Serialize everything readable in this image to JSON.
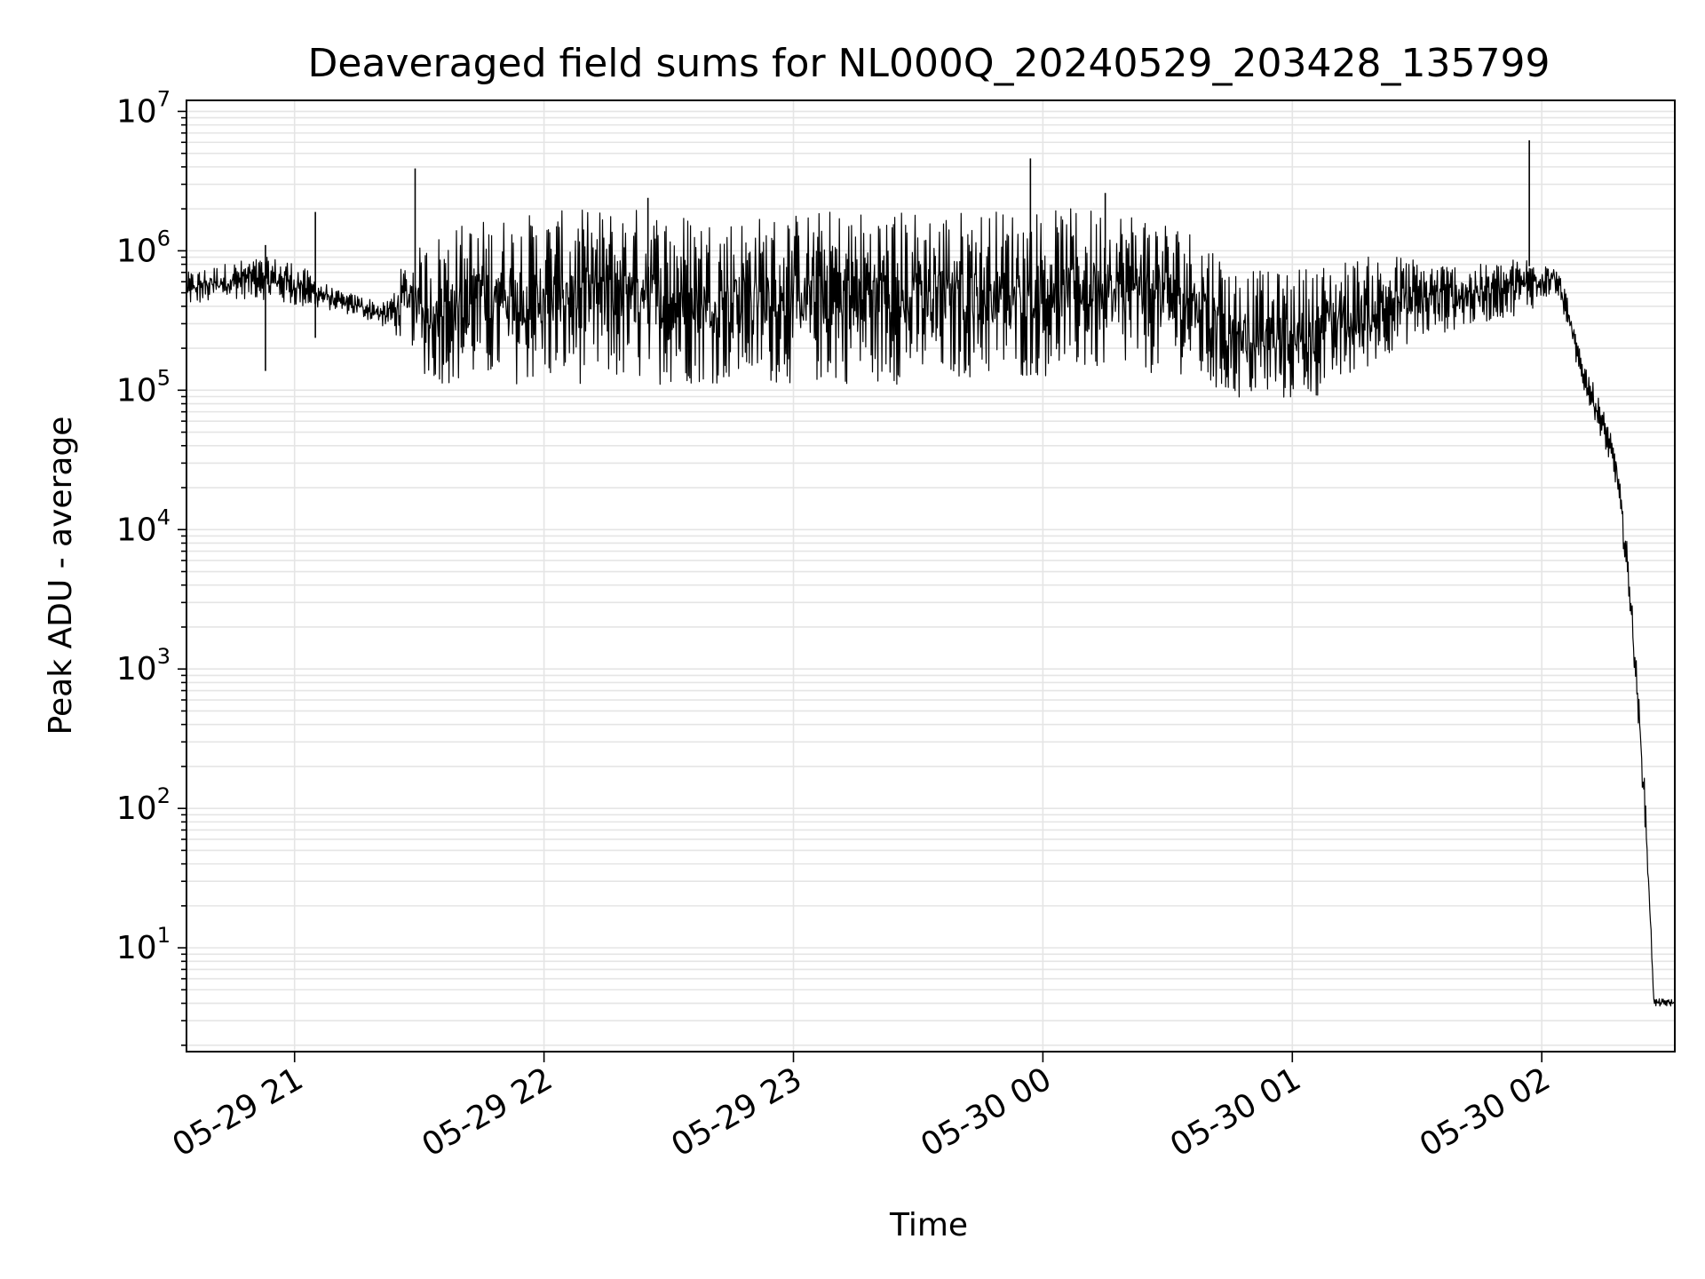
{
  "chart_data": {
    "type": "line",
    "title": "Deaveraged field sums for NL000Q_20240529_203428_135799",
    "xlabel": "Time",
    "ylabel": "Peak ADU - average",
    "xlim": [
      "2024-05-29 20:34",
      "2024-05-30 02:32"
    ],
    "ylim": [
      1.8,
      12000000
    ],
    "yscale": "log",
    "grid": true,
    "line_color": "#000000",
    "grid_color": "#e5e5e5",
    "x_ticks": [
      {
        "label": "05-29 21",
        "t": "2024-05-29 21:00"
      },
      {
        "label": "05-29 22",
        "t": "2024-05-29 22:00"
      },
      {
        "label": "05-29 23",
        "t": "2024-05-29 23:00"
      },
      {
        "label": "05-30 00",
        "t": "2024-05-30 00:00"
      },
      {
        "label": "05-30 01",
        "t": "2024-05-30 01:00"
      },
      {
        "label": "05-30 02",
        "t": "2024-05-30 02:00"
      }
    ],
    "y_ticks": [
      {
        "base": "10",
        "exp": "1",
        "value": 10
      },
      {
        "base": "10",
        "exp": "2",
        "value": 100
      },
      {
        "base": "10",
        "exp": "3",
        "value": 1000
      },
      {
        "base": "10",
        "exp": "4",
        "value": 10000
      },
      {
        "base": "10",
        "exp": "5",
        "value": 100000
      },
      {
        "base": "10",
        "exp": "6",
        "value": 1000000
      },
      {
        "base": "10",
        "exp": "7",
        "value": 10000000
      }
    ],
    "series": [
      {
        "x": [
          "2024-05-29 20:34",
          "2024-05-29 20:40",
          "2024-05-29 20:46",
          "2024-05-29 20:52",
          "2024-05-29 20:58",
          "2024-05-29 21:04",
          "2024-05-29 21:10",
          "2024-05-29 21:16",
          "2024-05-29 21:22",
          "2024-05-29 21:26",
          "2024-05-29 21:29",
          "2024-05-29 21:32",
          "2024-05-29 21:35",
          "2024-05-29 21:40",
          "2024-05-29 21:50",
          "2024-05-29 22:00",
          "2024-05-29 22:10",
          "2024-05-29 22:20",
          "2024-05-29 22:30",
          "2024-05-29 22:40",
          "2024-05-29 22:50",
          "2024-05-29 23:00",
          "2024-05-29 23:10",
          "2024-05-29 23:20",
          "2024-05-29 23:30",
          "2024-05-29 23:40",
          "2024-05-29 23:50",
          "2024-05-29 23:58",
          "2024-05-30 00:05",
          "2024-05-30 00:15",
          "2024-05-30 00:25",
          "2024-05-30 00:35",
          "2024-05-30 00:40",
          "2024-05-30 00:45",
          "2024-05-30 00:55",
          "2024-05-30 01:05",
          "2024-05-30 01:15",
          "2024-05-30 01:25",
          "2024-05-30 01:35",
          "2024-05-30 01:45",
          "2024-05-30 01:55",
          "2024-05-30 01:59",
          "2024-05-30 02:03",
          "2024-05-30 02:06",
          "2024-05-30 02:09",
          "2024-05-30 02:12",
          "2024-05-30 02:15",
          "2024-05-30 02:18",
          "2024-05-30 02:21",
          "2024-05-30 02:23",
          "2024-05-30 02:25",
          "2024-05-30 02:27",
          "2024-05-30 02:28",
          "2024-05-30 02:29",
          "2024-05-30 02:32"
        ],
        "lo": [
          400000,
          420000,
          450000,
          450000,
          400000,
          380000,
          370000,
          330000,
          280000,
          220000,
          200000,
          110000,
          110000,
          110000,
          110000,
          110000,
          110000,
          110000,
          110000,
          110000,
          110000,
          110000,
          110000,
          110000,
          110000,
          120000,
          120000,
          120000,
          130000,
          130000,
          130000,
          130000,
          90000,
          85000,
          80000,
          85000,
          120000,
          200000,
          250000,
          300000,
          350000,
          400000,
          500000,
          300000,
          120000,
          70000,
          40000,
          20000,
          3000,
          500,
          60,
          3.8,
          3.8,
          3.8,
          3.8
        ],
        "hi": [
          700000,
          780000,
          850000,
          900000,
          900000,
          700000,
          520000,
          480000,
          420000,
          800000,
          1000000,
          1200000,
          1400000,
          1600000,
          1800000,
          1900000,
          2000000,
          2100000,
          2000000,
          1800000,
          1800000,
          1900000,
          2000000,
          2000000,
          2000000,
          2000000,
          2000000,
          2000000,
          2000000,
          2100000,
          2000000,
          1500000,
          1300000,
          800000,
          700000,
          800000,
          900000,
          950000,
          850000,
          800000,
          900000,
          950000,
          900000,
          500000,
          200000,
          120000,
          70000,
          35000,
          6000,
          900,
          120,
          4.3,
          4.3,
          4.3,
          4.3
        ],
        "spikes": [
          {
            "t": "2024-05-29 20:53",
            "value": 1100000
          },
          {
            "t": "2024-05-29 21:05",
            "value": 1900000
          },
          {
            "t": "2024-05-29 21:29",
            "value": 3900000
          },
          {
            "t": "2024-05-29 22:25",
            "value": 2400000
          },
          {
            "t": "2024-05-29 23:57",
            "value": 4600000
          },
          {
            "t": "2024-05-30 00:15",
            "value": 2600000
          },
          {
            "t": "2024-05-30 01:57",
            "value": 6200000
          }
        ]
      }
    ]
  }
}
